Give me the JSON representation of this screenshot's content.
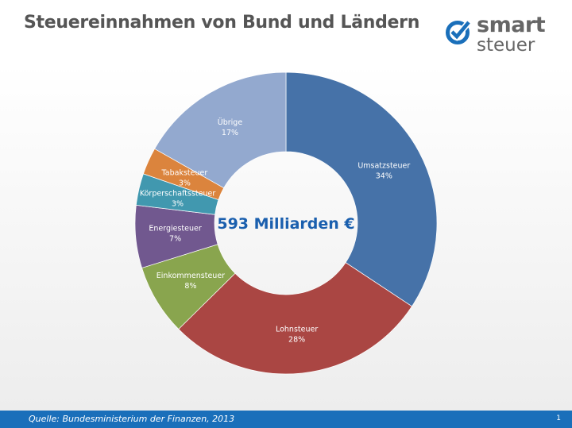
{
  "header": {
    "title": "Steuereinnahmen von Bund und Ländern"
  },
  "logo": {
    "line1": "smart",
    "line2": "steuer",
    "color": "#1a6fba"
  },
  "footer": {
    "source": "Quelle: Bundesministerium der Finanzen, 2013",
    "page": "1"
  },
  "chart_data": {
    "type": "pie",
    "donut": true,
    "center_label": "593 Milliarden €",
    "categories": [
      "Umsatzsteuer",
      "Lohnsteuer",
      "Einkommensteuer",
      "Energiesteuer",
      "Körperschaftssteuer",
      "Tabaksteuer",
      "Übrige"
    ],
    "values": [
      34.3,
      28.3,
      7.6,
      6.7,
      3.4,
      2.9,
      16.8
    ],
    "data_labels": [
      "34%",
      "28%",
      "8%",
      "7%",
      "3%",
      "3%",
      "17%"
    ],
    "colors": [
      "#4672a8",
      "#aa4643",
      "#89a54e",
      "#71588f",
      "#4198af",
      "#db843d",
      "#93a9cf"
    ]
  }
}
